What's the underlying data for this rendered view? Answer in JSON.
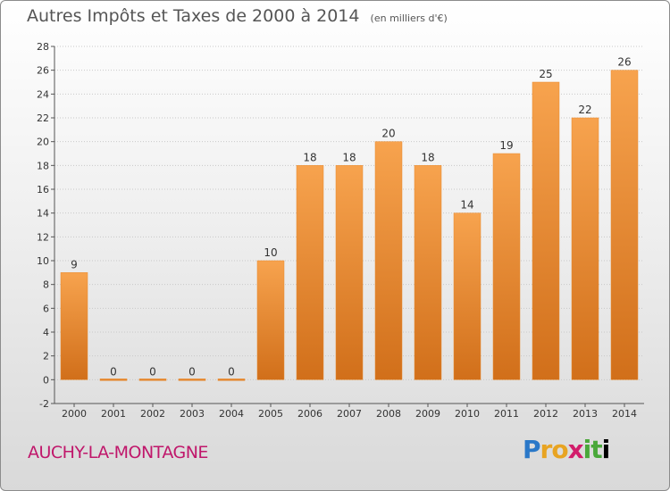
{
  "header": {
    "title": "Autres Impôts et Taxes de 2000 à 2014",
    "subtitle": "(en milliers d'€)"
  },
  "footer": {
    "commune": "AUCHY-LA-MONTAGNE",
    "logo_text": "Proxiti"
  },
  "colors": {
    "bar_light": "#f7a34e",
    "bar_dark": "#d16f1a",
    "commune": "#c0176b"
  },
  "chart_data": {
    "type": "bar",
    "title": "Autres Impôts et Taxes de 2000 à 2014",
    "subtitle": "(en milliers d'€)",
    "xlabel": "",
    "ylabel": "",
    "categories": [
      "2000",
      "2001",
      "2002",
      "2003",
      "2004",
      "2005",
      "2006",
      "2007",
      "2008",
      "2009",
      "2010",
      "2011",
      "2012",
      "2013",
      "2014"
    ],
    "values": [
      9,
      0,
      0,
      0,
      0,
      10,
      18,
      18,
      20,
      18,
      14,
      19,
      25,
      22,
      26
    ],
    "ylim": [
      -2,
      28
    ],
    "yticks": [
      -2,
      0,
      2,
      4,
      6,
      8,
      10,
      12,
      14,
      16,
      18,
      20,
      22,
      24,
      26,
      28
    ],
    "grid": true,
    "legend": "none"
  }
}
